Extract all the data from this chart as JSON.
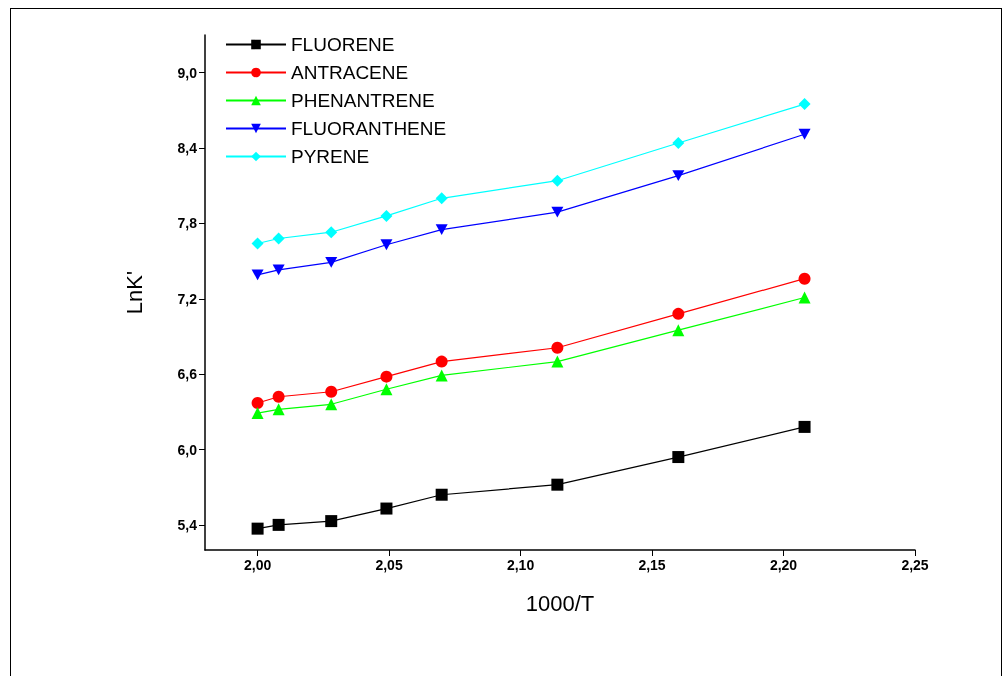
{
  "chart_data": {
    "type": "line",
    "xlabel": "1000/T",
    "ylabel": "LnK'",
    "x": [
      2.0,
      2.008,
      2.028,
      2.049,
      2.07,
      2.114,
      2.16,
      2.208
    ],
    "series": [
      {
        "name": "FLUORENE",
        "color": "#000000",
        "marker": "square",
        "values": [
          5.37,
          5.4,
          5.43,
          5.53,
          5.64,
          5.72,
          5.94,
          6.18
        ]
      },
      {
        "name": "ANTRACENE",
        "color": "#ff0000",
        "marker": "circle",
        "values": [
          6.37,
          6.42,
          6.46,
          6.58,
          6.7,
          6.81,
          7.08,
          7.36
        ]
      },
      {
        "name": "PHENANTRENE",
        "color": "#00ff00",
        "marker": "triangle",
        "values": [
          6.29,
          6.32,
          6.36,
          6.48,
          6.59,
          6.7,
          6.95,
          7.21
        ]
      },
      {
        "name": "FLUORANTHENE",
        "color": "#0000ff",
        "marker": "triangle-down",
        "values": [
          7.39,
          7.43,
          7.49,
          7.63,
          7.75,
          7.89,
          8.18,
          8.51
        ]
      },
      {
        "name": "PYRENE",
        "color": "#00ffff",
        "marker": "diamond",
        "values": [
          7.64,
          7.68,
          7.73,
          7.86,
          8.0,
          8.14,
          8.44,
          8.75
        ]
      }
    ],
    "xlim": [
      1.98,
      2.25
    ],
    "xticks": [
      {
        "value": 2.0,
        "label": "2,00"
      },
      {
        "value": 2.05,
        "label": "2,05"
      },
      {
        "value": 2.1,
        "label": "2,10"
      },
      {
        "value": 2.15,
        "label": "2,15"
      },
      {
        "value": 2.2,
        "label": "2,20"
      },
      {
        "value": 2.25,
        "label": "2,25"
      }
    ],
    "ylim": [
      5.2,
      9.3
    ],
    "yticks": [
      {
        "value": 5.4,
        "label": "5,4"
      },
      {
        "value": 6.0,
        "label": "6,0"
      },
      {
        "value": 6.6,
        "label": "6,6"
      },
      {
        "value": 7.2,
        "label": "7,2"
      },
      {
        "value": 7.8,
        "label": "7,8"
      },
      {
        "value": 8.4,
        "label": "8,4"
      },
      {
        "value": 9.0,
        "label": "9,0"
      }
    ],
    "grid": false,
    "legend": "top left",
    "line_style": "solid"
  }
}
